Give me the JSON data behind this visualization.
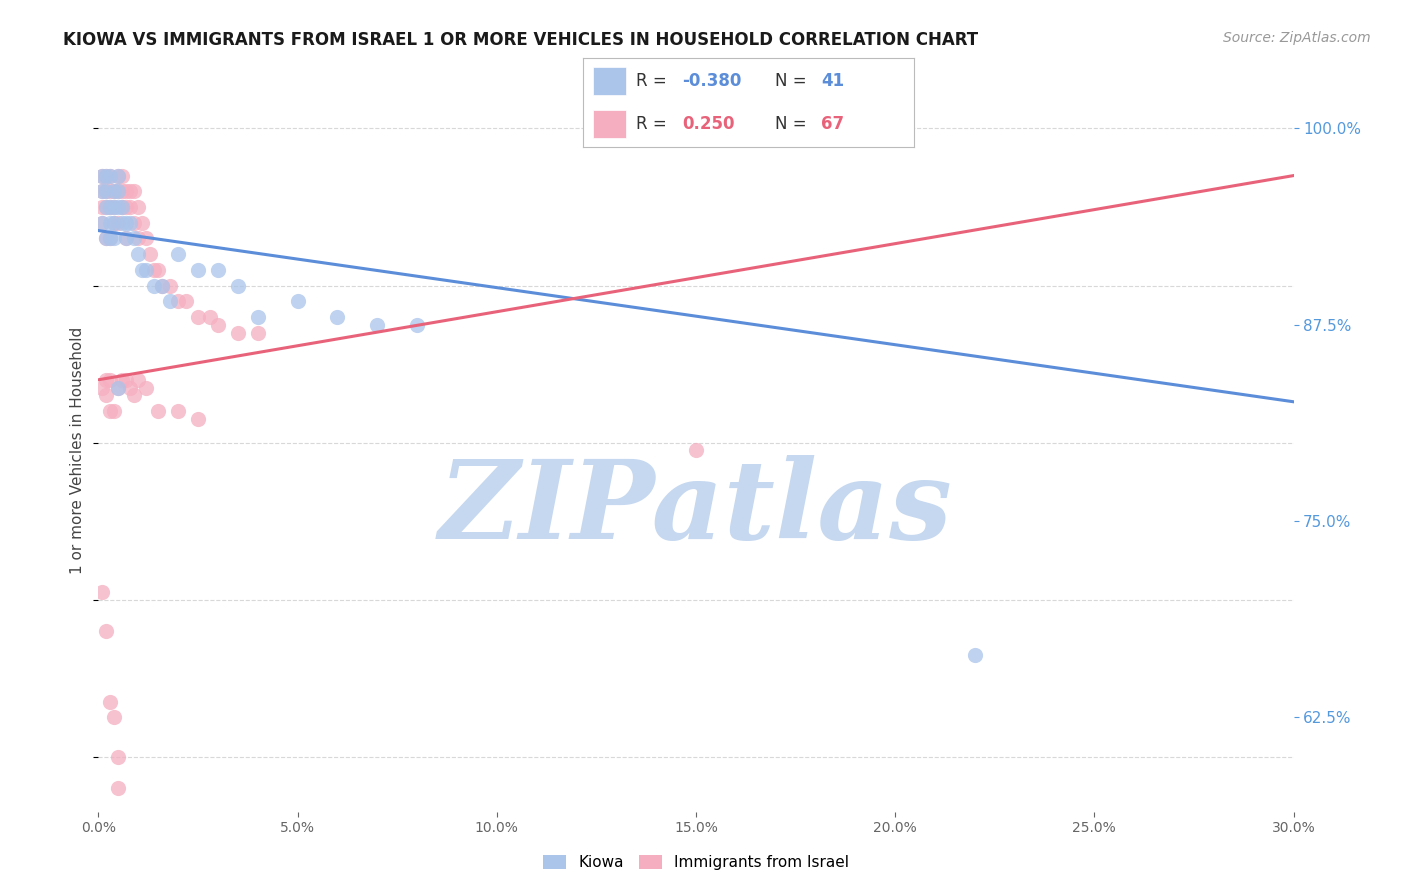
{
  "title": "KIOWA VS IMMIGRANTS FROM ISRAEL 1 OR MORE VEHICLES IN HOUSEHOLD CORRELATION CHART",
  "source": "Source: ZipAtlas.com",
  "ylabel": "1 or more Vehicles in Household",
  "xmin": 0.0,
  "xmax": 0.3,
  "ymin": 0.565,
  "ymax": 1.025,
  "kiowa_R": -0.38,
  "kiowa_N": 41,
  "israel_R": 0.25,
  "israel_N": 67,
  "kiowa_color": "#aac4ea",
  "israel_color": "#f5aec0",
  "kiowa_line_color": "#5b8dd9",
  "israel_line_color": "#e8637a",
  "background_color": "#ffffff",
  "grid_color": "#d8d8d8",
  "watermark_color": "#c5d8f0",
  "kiowa_line_x0": 0.0,
  "kiowa_line_x1": 0.3,
  "kiowa_line_y0": 0.935,
  "kiowa_line_y1": 0.826,
  "israel_line_x0": 0.0,
  "israel_line_x1": 0.3,
  "israel_line_y0": 0.84,
  "israel_line_y1": 0.97,
  "kiowa_x": [
    0.001,
    0.001,
    0.001,
    0.002,
    0.002,
    0.002,
    0.002,
    0.003,
    0.003,
    0.003,
    0.003,
    0.004,
    0.004,
    0.004,
    0.004,
    0.005,
    0.005,
    0.005,
    0.006,
    0.006,
    0.007,
    0.007,
    0.008,
    0.009,
    0.01,
    0.011,
    0.012,
    0.014,
    0.016,
    0.018,
    0.02,
    0.025,
    0.03,
    0.035,
    0.04,
    0.05,
    0.06,
    0.07,
    0.08,
    0.22,
    0.005
  ],
  "kiowa_y": [
    0.97,
    0.96,
    0.94,
    0.97,
    0.96,
    0.95,
    0.93,
    0.97,
    0.95,
    0.94,
    0.93,
    0.96,
    0.95,
    0.94,
    0.93,
    0.97,
    0.96,
    0.95,
    0.95,
    0.94,
    0.94,
    0.93,
    0.94,
    0.93,
    0.92,
    0.91,
    0.91,
    0.9,
    0.9,
    0.89,
    0.92,
    0.91,
    0.91,
    0.9,
    0.88,
    0.89,
    0.88,
    0.875,
    0.875,
    0.665,
    0.835
  ],
  "israel_x": [
    0.001,
    0.001,
    0.001,
    0.001,
    0.002,
    0.002,
    0.002,
    0.002,
    0.003,
    0.003,
    0.003,
    0.003,
    0.004,
    0.004,
    0.004,
    0.005,
    0.005,
    0.005,
    0.006,
    0.006,
    0.006,
    0.007,
    0.007,
    0.007,
    0.008,
    0.008,
    0.009,
    0.009,
    0.01,
    0.01,
    0.011,
    0.012,
    0.013,
    0.014,
    0.015,
    0.016,
    0.018,
    0.02,
    0.022,
    0.025,
    0.028,
    0.03,
    0.035,
    0.04,
    0.001,
    0.002,
    0.002,
    0.003,
    0.003,
    0.004,
    0.005,
    0.006,
    0.007,
    0.008,
    0.009,
    0.01,
    0.012,
    0.015,
    0.02,
    0.025,
    0.001,
    0.002,
    0.003,
    0.004,
    0.005,
    0.15,
    0.005
  ],
  "israel_y": [
    0.97,
    0.96,
    0.95,
    0.94,
    0.97,
    0.96,
    0.95,
    0.93,
    0.97,
    0.96,
    0.95,
    0.93,
    0.96,
    0.95,
    0.94,
    0.97,
    0.96,
    0.94,
    0.97,
    0.96,
    0.95,
    0.96,
    0.95,
    0.93,
    0.96,
    0.95,
    0.96,
    0.94,
    0.95,
    0.93,
    0.94,
    0.93,
    0.92,
    0.91,
    0.91,
    0.9,
    0.9,
    0.89,
    0.89,
    0.88,
    0.88,
    0.875,
    0.87,
    0.87,
    0.835,
    0.83,
    0.84,
    0.84,
    0.82,
    0.82,
    0.835,
    0.84,
    0.84,
    0.835,
    0.83,
    0.84,
    0.835,
    0.82,
    0.82,
    0.815,
    0.705,
    0.68,
    0.635,
    0.625,
    0.6,
    0.795,
    0.58
  ]
}
